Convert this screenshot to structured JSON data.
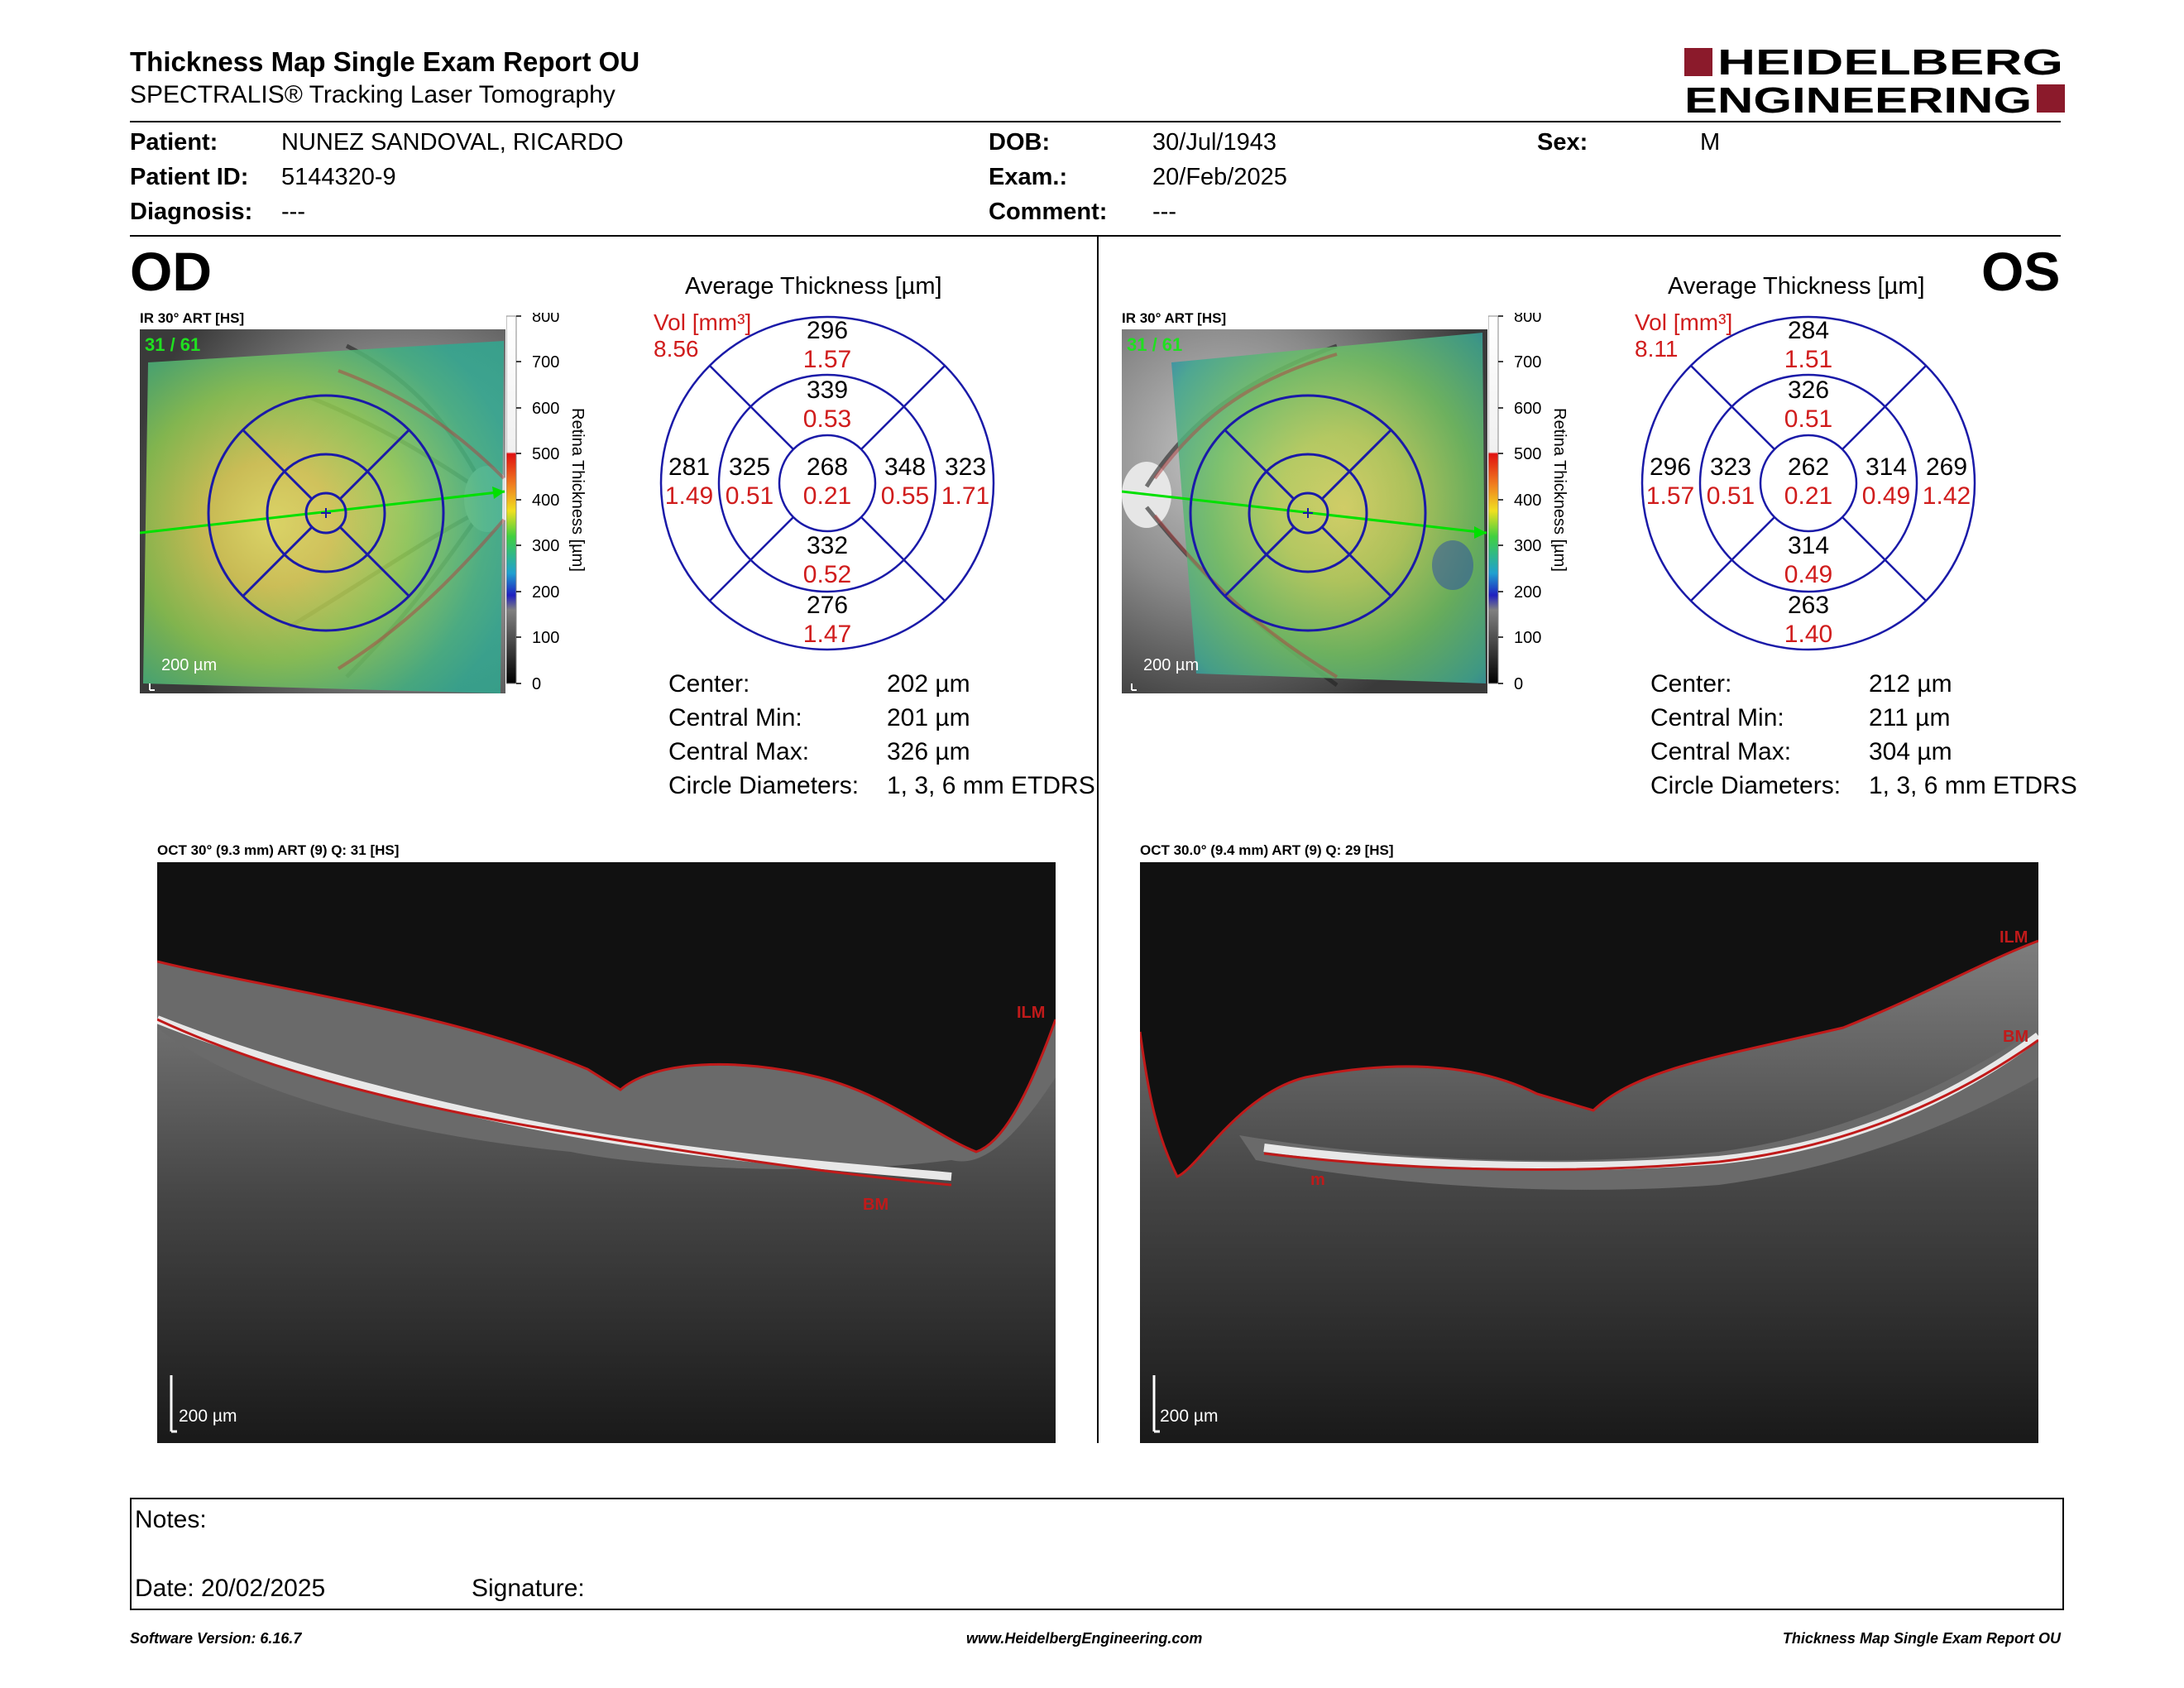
{
  "header": {
    "title": "Thickness Map Single Exam Report OU",
    "subtitle": "SPECTRALIS® Tracking Laser Tomography",
    "logo_line1": "HEIDELBERG",
    "logo_line2": "ENGINEERING",
    "logo_color": "#8b1a2b"
  },
  "patient": {
    "patient_label": "Patient:",
    "patient_value": "NUNEZ SANDOVAL, RICARDO",
    "id_label": "Patient ID:",
    "id_value": "5144320-9",
    "diagnosis_label": "Diagnosis:",
    "diagnosis_value": "---",
    "dob_label": "DOB:",
    "dob_value": "30/Jul/1943",
    "exam_label": "Exam.:",
    "exam_value": "20/Feb/2025",
    "comment_label": "Comment:",
    "comment_value": "---",
    "sex_label": "Sex:",
    "sex_value": "M"
  },
  "od": {
    "eye": "OD",
    "ir_label": "IR 30° ART [HS]",
    "ir_counter": "31 / 61",
    "ir_scale": "200 µm",
    "avg_title": "Average Thickness [µm]",
    "vol_label": "Vol [mm³]",
    "vol_value": "8.56",
    "sectors": {
      "center": [
        "268",
        "0.21"
      ],
      "inner_superior": [
        "339",
        "0.53"
      ],
      "inner_temporal": [
        "325",
        "0.51"
      ],
      "inner_nasal": [
        "348",
        "0.55"
      ],
      "inner_inferior": [
        "332",
        "0.52"
      ],
      "outer_superior": [
        "296",
        "1.57"
      ],
      "outer_temporal": [
        "281",
        "1.49"
      ],
      "outer_nasal": [
        "323",
        "1.71"
      ],
      "outer_inferior": [
        "276",
        "1.47"
      ]
    },
    "stats": {
      "center_label": "Center:",
      "center_value": "202 µm",
      "min_label": "Central Min:",
      "min_value": "201 µm",
      "max_label": "Central Max:",
      "max_value": "326 µm",
      "diam_label": "Circle Diameters:",
      "diam_value": "1, 3, 6 mm ETDRS"
    },
    "oct_label": "OCT 30° (9.3 mm) ART (9) Q: 31 [HS]",
    "oct_scale": "200 µm",
    "ilm": "ILM",
    "bm": "BM"
  },
  "os": {
    "eye": "OS",
    "ir_label": "IR 30° ART [HS]",
    "ir_counter": "31 / 61",
    "ir_scale": "200 µm",
    "avg_title": "Average Thickness [µm]",
    "vol_label": "Vol [mm³]",
    "vol_value": "8.11",
    "sectors": {
      "center": [
        "262",
        "0.21"
      ],
      "inner_superior": [
        "326",
        "0.51"
      ],
      "inner_temporal": [
        "323",
        "0.51"
      ],
      "inner_nasal": [
        "314",
        "0.49"
      ],
      "inner_inferior": [
        "314",
        "0.49"
      ],
      "outer_superior": [
        "284",
        "1.51"
      ],
      "outer_temporal": [
        "296",
        "1.57"
      ],
      "outer_nasal": [
        "269",
        "1.42"
      ],
      "outer_inferior": [
        "263",
        "1.40"
      ]
    },
    "stats": {
      "center_label": "Center:",
      "center_value": "212 µm",
      "min_label": "Central Min:",
      "min_value": "211 µm",
      "max_label": "Central Max:",
      "max_value": "304 µm",
      "diam_label": "Circle Diameters:",
      "diam_value": "1, 3, 6 mm ETDRS"
    },
    "oct_label": "OCT 30.0° (9.4 mm) ART (9) Q: 29 [HS]",
    "oct_scale": "200 µm",
    "ilm": "ILM",
    "bm": "BM",
    "bm2": "m"
  },
  "colorbar": {
    "ticks": [
      "800",
      "700",
      "600",
      "500",
      "400",
      "300",
      "200",
      "100",
      "0"
    ],
    "axis_label": "Retina Thickness [µm]"
  },
  "notes": {
    "notes_label": "Notes:",
    "date_label": "Date: 20/02/2025",
    "signature_label": "Signature:"
  },
  "footer": {
    "version": "Software Version: 6.16.7",
    "website": "www.HeidelbergEngineering.com",
    "report": "Thickness Map Single Exam Report OU"
  },
  "colors": {
    "sector_line": "#1a1aa8",
    "values_red": "#d01c1c",
    "ilm_red": "#c01a1a"
  }
}
